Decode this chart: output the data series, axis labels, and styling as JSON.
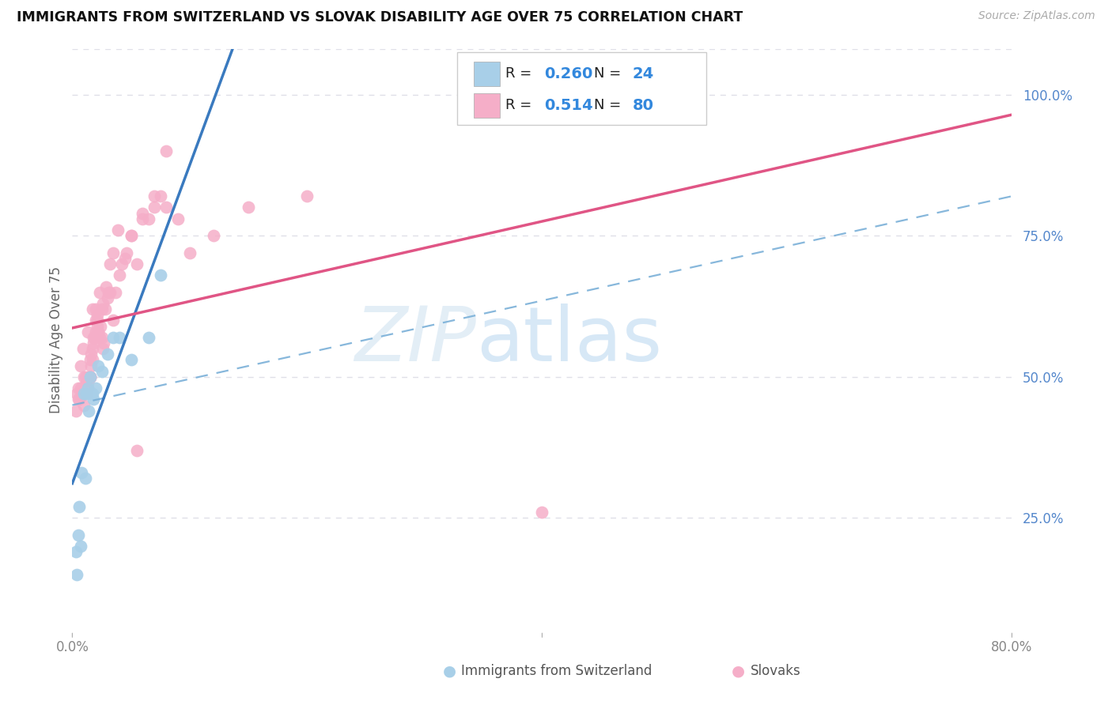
{
  "title": "IMMIGRANTS FROM SWITZERLAND VS SLOVAK DISABILITY AGE OVER 75 CORRELATION CHART",
  "source": "Source: ZipAtlas.com",
  "ylabel": "Disability Age Over 75",
  "r1": 0.26,
  "n1": 24,
  "r2": 0.514,
  "n2": 80,
  "blue_color": "#a8cfe8",
  "pink_color": "#f5aec8",
  "reg_blue_solid": "#3a7abf",
  "reg_pink_solid": "#e05585",
  "reg_blue_dash": "#7ab0d8",
  "legend_label1": "Immigrants from Switzerland",
  "legend_label2": "Slovaks",
  "x_min": 0,
  "x_max": 80,
  "y_min": 5,
  "y_max": 108,
  "right_yticks": [
    25,
    50,
    75,
    100
  ],
  "right_yticklabels": [
    "25.0%",
    "50.0%",
    "75.0%",
    "100.0%"
  ],
  "bottom_xtick_labels": [
    "0.0%",
    "80.0%"
  ],
  "grid_color": "#e0e0e8",
  "grid_dash": [
    4,
    4
  ],
  "blue_x": [
    0.3,
    0.4,
    0.5,
    0.6,
    0.7,
    0.8,
    1.0,
    1.1,
    1.2,
    1.3,
    1.4,
    1.5,
    1.6,
    1.7,
    1.8,
    2.0,
    2.2,
    2.5,
    3.0,
    3.5,
    4.0,
    5.0,
    6.5,
    7.5
  ],
  "blue_y": [
    19,
    15,
    22,
    27,
    20,
    33,
    47,
    32,
    47,
    48,
    44,
    50,
    47,
    47,
    46,
    48,
    52,
    51,
    54,
    57,
    57,
    53,
    57,
    68
  ],
  "pink_x": [
    0.4,
    0.5,
    0.6,
    0.7,
    0.8,
    1.0,
    1.0,
    1.1,
    1.1,
    1.2,
    1.2,
    1.3,
    1.3,
    1.4,
    1.5,
    1.5,
    1.5,
    1.6,
    1.6,
    1.7,
    1.7,
    1.8,
    1.8,
    1.9,
    2.0,
    2.0,
    2.1,
    2.1,
    2.1,
    2.2,
    2.2,
    2.3,
    2.4,
    2.5,
    2.5,
    2.6,
    2.7,
    2.8,
    3.0,
    3.1,
    3.2,
    3.5,
    3.7,
    4.0,
    4.5,
    5.0,
    5.5,
    6.0,
    7.0,
    8.0,
    0.3,
    0.5,
    0.7,
    0.9,
    1.1,
    1.3,
    1.5,
    1.7,
    2.0,
    2.3,
    2.6,
    2.9,
    3.2,
    3.5,
    3.9,
    4.2,
    4.6,
    5.0,
    5.5,
    6.0,
    6.5,
    7.0,
    7.5,
    8.0,
    9.0,
    10.0,
    12.0,
    15.0,
    20.0,
    40.0
  ],
  "pink_y": [
    47,
    46,
    46,
    48,
    47,
    45,
    50,
    47,
    48,
    47,
    49,
    48,
    49,
    50,
    50,
    53,
    50,
    52,
    54,
    53,
    55,
    56,
    57,
    57,
    58,
    60,
    59,
    61,
    60,
    58,
    58,
    57,
    59,
    62,
    57,
    55,
    56,
    62,
    64,
    65,
    65,
    60,
    65,
    68,
    71,
    75,
    37,
    79,
    82,
    90,
    44,
    48,
    52,
    55,
    50,
    58,
    50,
    62,
    62,
    65,
    63,
    66,
    70,
    72,
    76,
    70,
    72,
    75,
    70,
    78,
    78,
    80,
    82,
    80,
    78,
    72,
    75,
    80,
    82,
    26
  ]
}
